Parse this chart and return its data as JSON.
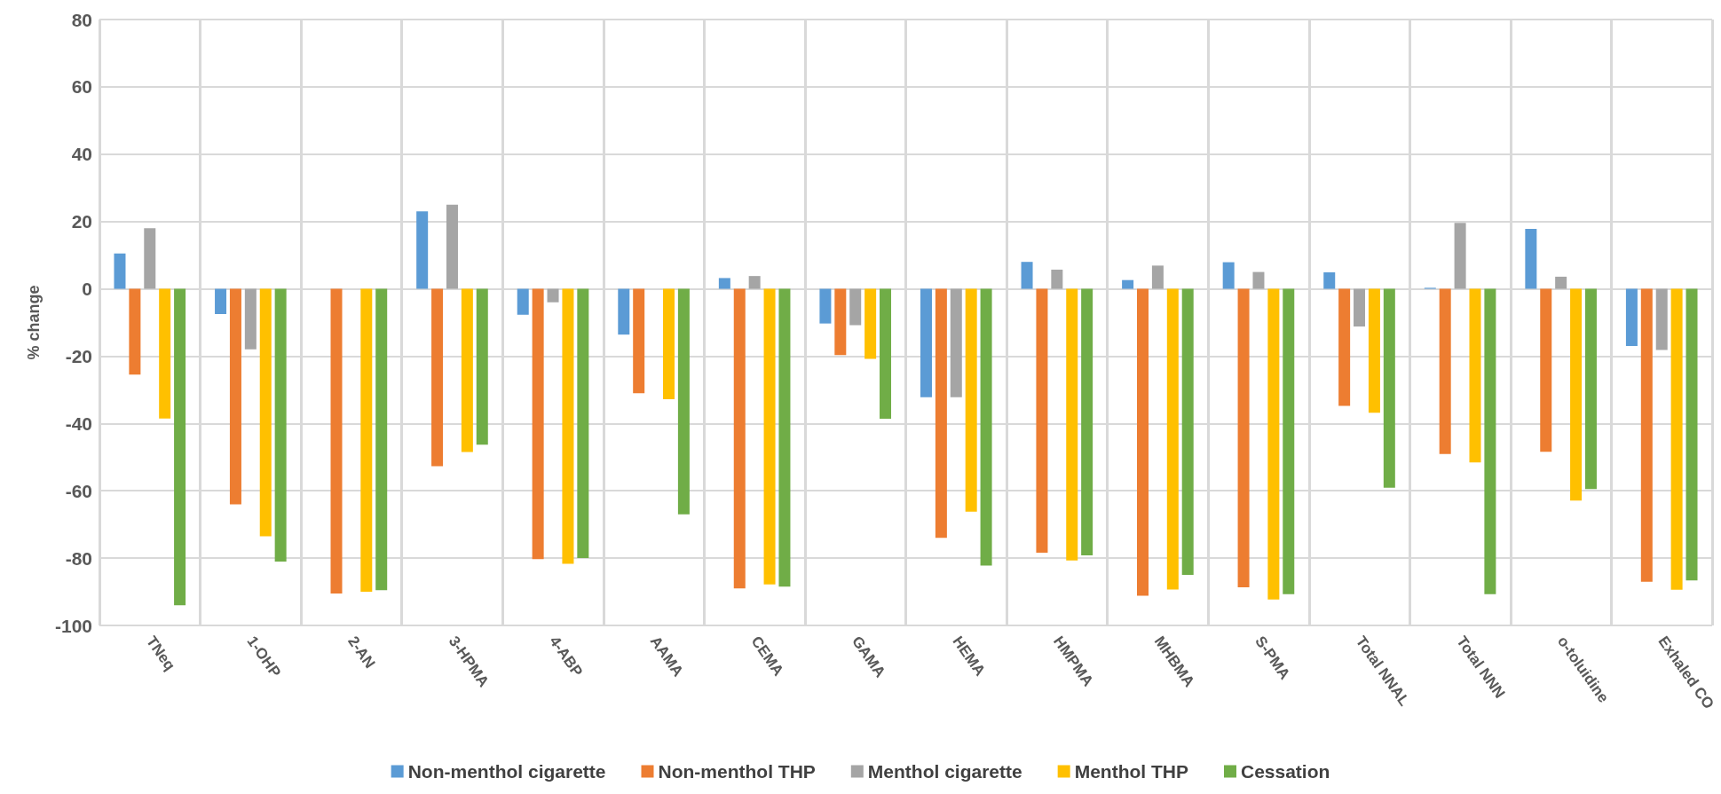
{
  "chart_data": {
    "type": "bar",
    "ylabel": "% change",
    "categories": [
      "TNeq",
      "1-OHP",
      "2-AN",
      "3-HPMA",
      "4-ABP",
      "AAMA",
      "CEMA",
      "GAMA",
      "HEMA",
      "HMPMA",
      "MHBMA",
      "S-PMA",
      "Total NNAL",
      "Total NNN",
      "o-toluidine",
      "Exhaled CO"
    ],
    "series": [
      {
        "name": "Non-menthol cigarette",
        "color": "#5b9bd5",
        "values": [
          10.5,
          -7.5,
          null,
          23,
          -7.7,
          -13.6,
          3.2,
          -10.3,
          -32.2,
          8,
          2.6,
          7.9,
          4.9,
          0.3,
          17.8,
          -17
        ]
      },
      {
        "name": "Non-menthol THP",
        "color": "#ed7d31",
        "values": [
          -25.5,
          -64,
          -90.5,
          -52.7,
          -80.3,
          -31,
          -89,
          -19.7,
          -74,
          -78.4,
          -91.2,
          -88.7,
          -34.8,
          -49.1,
          -48.4,
          -87
        ]
      },
      {
        "name": "Menthol cigarette",
        "color": "#a5a5a5",
        "values": [
          18,
          -18,
          null,
          25,
          -4,
          null,
          3.8,
          -10.8,
          -32.2,
          5.7,
          6.9,
          5,
          -11.2,
          19.6,
          3.6,
          -18.2
        ]
      },
      {
        "name": "Menthol THP",
        "color": "#ffc000",
        "values": [
          -38.5,
          -73.5,
          -90,
          -48.5,
          -81.7,
          -32.8,
          -87.8,
          -20.8,
          -66.2,
          -80.7,
          -89.3,
          -92.3,
          -36.8,
          -51.6,
          -62.9,
          -89.4
        ]
      },
      {
        "name": "Cessation",
        "color": "#70ad47",
        "values": [
          -94,
          -81,
          -89.5,
          -46.3,
          -80,
          -67,
          -88.5,
          -38.6,
          -82.2,
          -79.2,
          -85,
          -90.7,
          -59.1,
          -90.7,
          -59.5,
          -86.6
        ]
      }
    ],
    "ylim": [
      -100,
      80
    ],
    "yticks": [
      -100,
      -80,
      -60,
      -40,
      -20,
      0,
      20,
      40,
      60,
      80
    ],
    "grid": true,
    "legend": "bottom"
  }
}
